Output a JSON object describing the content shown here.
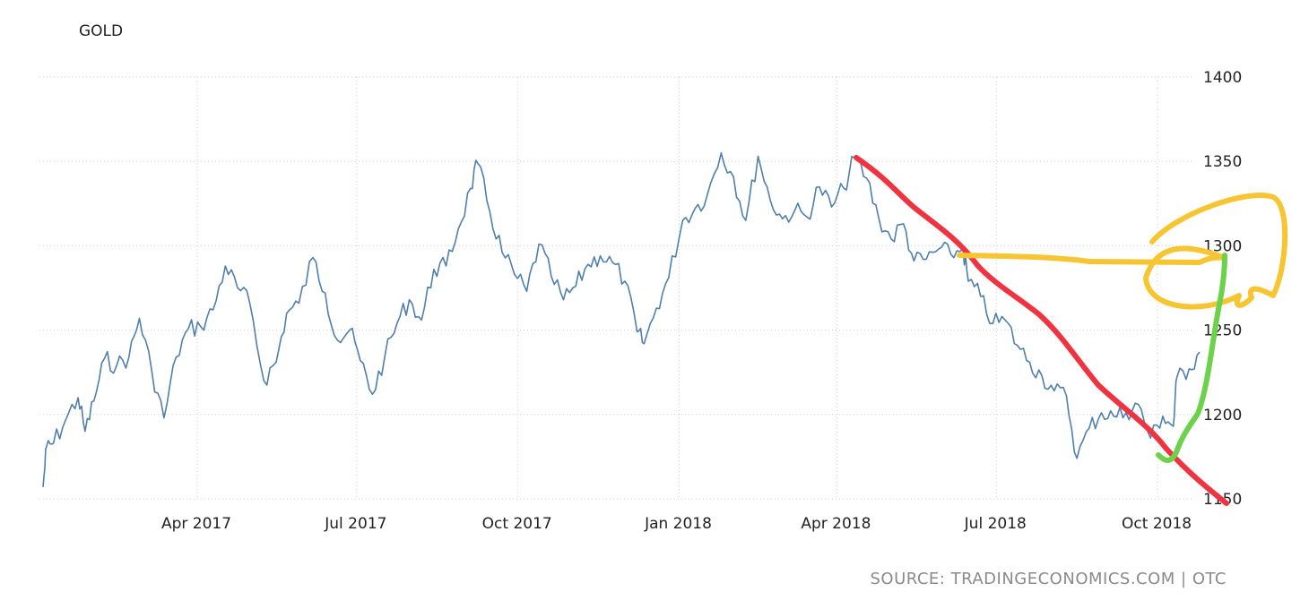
{
  "chart_data": {
    "type": "line",
    "title": "GOLD",
    "source": "SOURCE: TRADINGECONOMICS.COM | OTC",
    "ylim": [
      1150,
      1400
    ],
    "y_ticks": [
      "1150",
      "1200",
      "1250",
      "1300",
      "1350",
      "1400"
    ],
    "x_range": [
      "2017-01-03",
      "2018-10-25"
    ],
    "x_ticks": [
      {
        "label": "Apr 2017",
        "date": "2017-04-01"
      },
      {
        "label": "Jul 2017",
        "date": "2017-07-01"
      },
      {
        "label": "Oct 2017",
        "date": "2017-10-01"
      },
      {
        "label": "Jan 2018",
        "date": "2018-01-01"
      },
      {
        "label": "Apr 2018",
        "date": "2018-04-01"
      },
      {
        "label": "Jul 2018",
        "date": "2018-07-01"
      },
      {
        "label": "Oct 2018",
        "date": "2018-10-01"
      }
    ],
    "grid": true,
    "series_color": "#4f7fac",
    "series": [
      {
        "values": [
          [
            "2017-01-03",
            1157
          ],
          [
            "2017-01-05",
            1181
          ],
          [
            "2017-01-09",
            1183
          ],
          [
            "2017-01-16",
            1197
          ],
          [
            "2017-01-23",
            1210
          ],
          [
            "2017-01-27",
            1190
          ],
          [
            "2017-02-01",
            1208
          ],
          [
            "2017-02-07",
            1233
          ],
          [
            "2017-02-14",
            1229
          ],
          [
            "2017-02-21",
            1234
          ],
          [
            "2017-02-27",
            1257
          ],
          [
            "2017-03-06",
            1226
          ],
          [
            "2017-03-13",
            1198
          ],
          [
            "2017-03-20",
            1234
          ],
          [
            "2017-03-27",
            1251
          ],
          [
            "2017-04-03",
            1252
          ],
          [
            "2017-04-10",
            1262
          ],
          [
            "2017-04-17",
            1288
          ],
          [
            "2017-04-24",
            1275
          ],
          [
            "2017-05-01",
            1266
          ],
          [
            "2017-05-09",
            1220
          ],
          [
            "2017-05-16",
            1231
          ],
          [
            "2017-05-22",
            1260
          ],
          [
            "2017-05-29",
            1266
          ],
          [
            "2017-06-06",
            1293
          ],
          [
            "2017-06-13",
            1272
          ],
          [
            "2017-06-20",
            1244
          ],
          [
            "2017-06-27",
            1250
          ],
          [
            "2017-07-03",
            1232
          ],
          [
            "2017-07-10",
            1212
          ],
          [
            "2017-07-17",
            1234
          ],
          [
            "2017-07-24",
            1254
          ],
          [
            "2017-07-31",
            1268
          ],
          [
            "2017-08-07",
            1256
          ],
          [
            "2017-08-14",
            1286
          ],
          [
            "2017-08-21",
            1288
          ],
          [
            "2017-08-28",
            1310
          ],
          [
            "2017-09-04",
            1334
          ],
          [
            "2017-09-08",
            1349
          ],
          [
            "2017-09-15",
            1320
          ],
          [
            "2017-09-22",
            1296
          ],
          [
            "2017-09-29",
            1283
          ],
          [
            "2017-10-06",
            1273
          ],
          [
            "2017-10-13",
            1301
          ],
          [
            "2017-10-20",
            1282
          ],
          [
            "2017-10-27",
            1268
          ],
          [
            "2017-11-03",
            1276
          ],
          [
            "2017-11-10",
            1289
          ],
          [
            "2017-11-17",
            1294
          ],
          [
            "2017-11-24",
            1290
          ],
          [
            "2017-12-01",
            1279
          ],
          [
            "2017-12-08",
            1249
          ],
          [
            "2017-12-12",
            1242
          ],
          [
            "2017-12-19",
            1263
          ],
          [
            "2017-12-26",
            1281
          ],
          [
            "2018-01-03",
            1315
          ],
          [
            "2018-01-10",
            1322
          ],
          [
            "2018-01-17",
            1330
          ],
          [
            "2018-01-25",
            1355
          ],
          [
            "2018-02-01",
            1341
          ],
          [
            "2018-02-08",
            1315
          ],
          [
            "2018-02-15",
            1353
          ],
          [
            "2018-02-22",
            1327
          ],
          [
            "2018-03-01",
            1316
          ],
          [
            "2018-03-08",
            1321
          ],
          [
            "2018-03-15",
            1317
          ],
          [
            "2018-03-22",
            1335
          ],
          [
            "2018-03-29",
            1323
          ],
          [
            "2018-04-05",
            1334
          ],
          [
            "2018-04-11",
            1352
          ],
          [
            "2018-04-18",
            1340
          ],
          [
            "2018-04-25",
            1316
          ],
          [
            "2018-05-02",
            1304
          ],
          [
            "2018-05-09",
            1313
          ],
          [
            "2018-05-15",
            1291
          ],
          [
            "2018-05-22",
            1292
          ],
          [
            "2018-05-29",
            1298
          ],
          [
            "2018-06-05",
            1295
          ],
          [
            "2018-06-12",
            1298
          ],
          [
            "2018-06-15",
            1279
          ],
          [
            "2018-06-22",
            1270
          ],
          [
            "2018-06-29",
            1254
          ],
          [
            "2018-07-06",
            1256
          ],
          [
            "2018-07-13",
            1241
          ],
          [
            "2018-07-20",
            1231
          ],
          [
            "2018-07-27",
            1223
          ],
          [
            "2018-08-03",
            1214
          ],
          [
            "2018-08-10",
            1211
          ],
          [
            "2018-08-16",
            1174
          ],
          [
            "2018-08-23",
            1192
          ],
          [
            "2018-08-30",
            1201
          ],
          [
            "2018-09-06",
            1199
          ],
          [
            "2018-09-13",
            1201
          ],
          [
            "2018-09-20",
            1206
          ],
          [
            "2018-09-27",
            1186
          ],
          [
            "2018-10-04",
            1199
          ],
          [
            "2018-10-10",
            1193
          ],
          [
            "2018-10-12",
            1222
          ],
          [
            "2018-10-19",
            1227
          ],
          [
            "2018-10-25",
            1237
          ]
        ]
      }
    ],
    "annotations": [
      {
        "shape": "downtrend-line",
        "color": "#ef3340"
      },
      {
        "shape": "horizontal-line",
        "color": "#f7c531"
      },
      {
        "shape": "circle",
        "color": "#f7c531"
      },
      {
        "shape": "uptrend-line",
        "color": "#6cd24a"
      }
    ]
  }
}
